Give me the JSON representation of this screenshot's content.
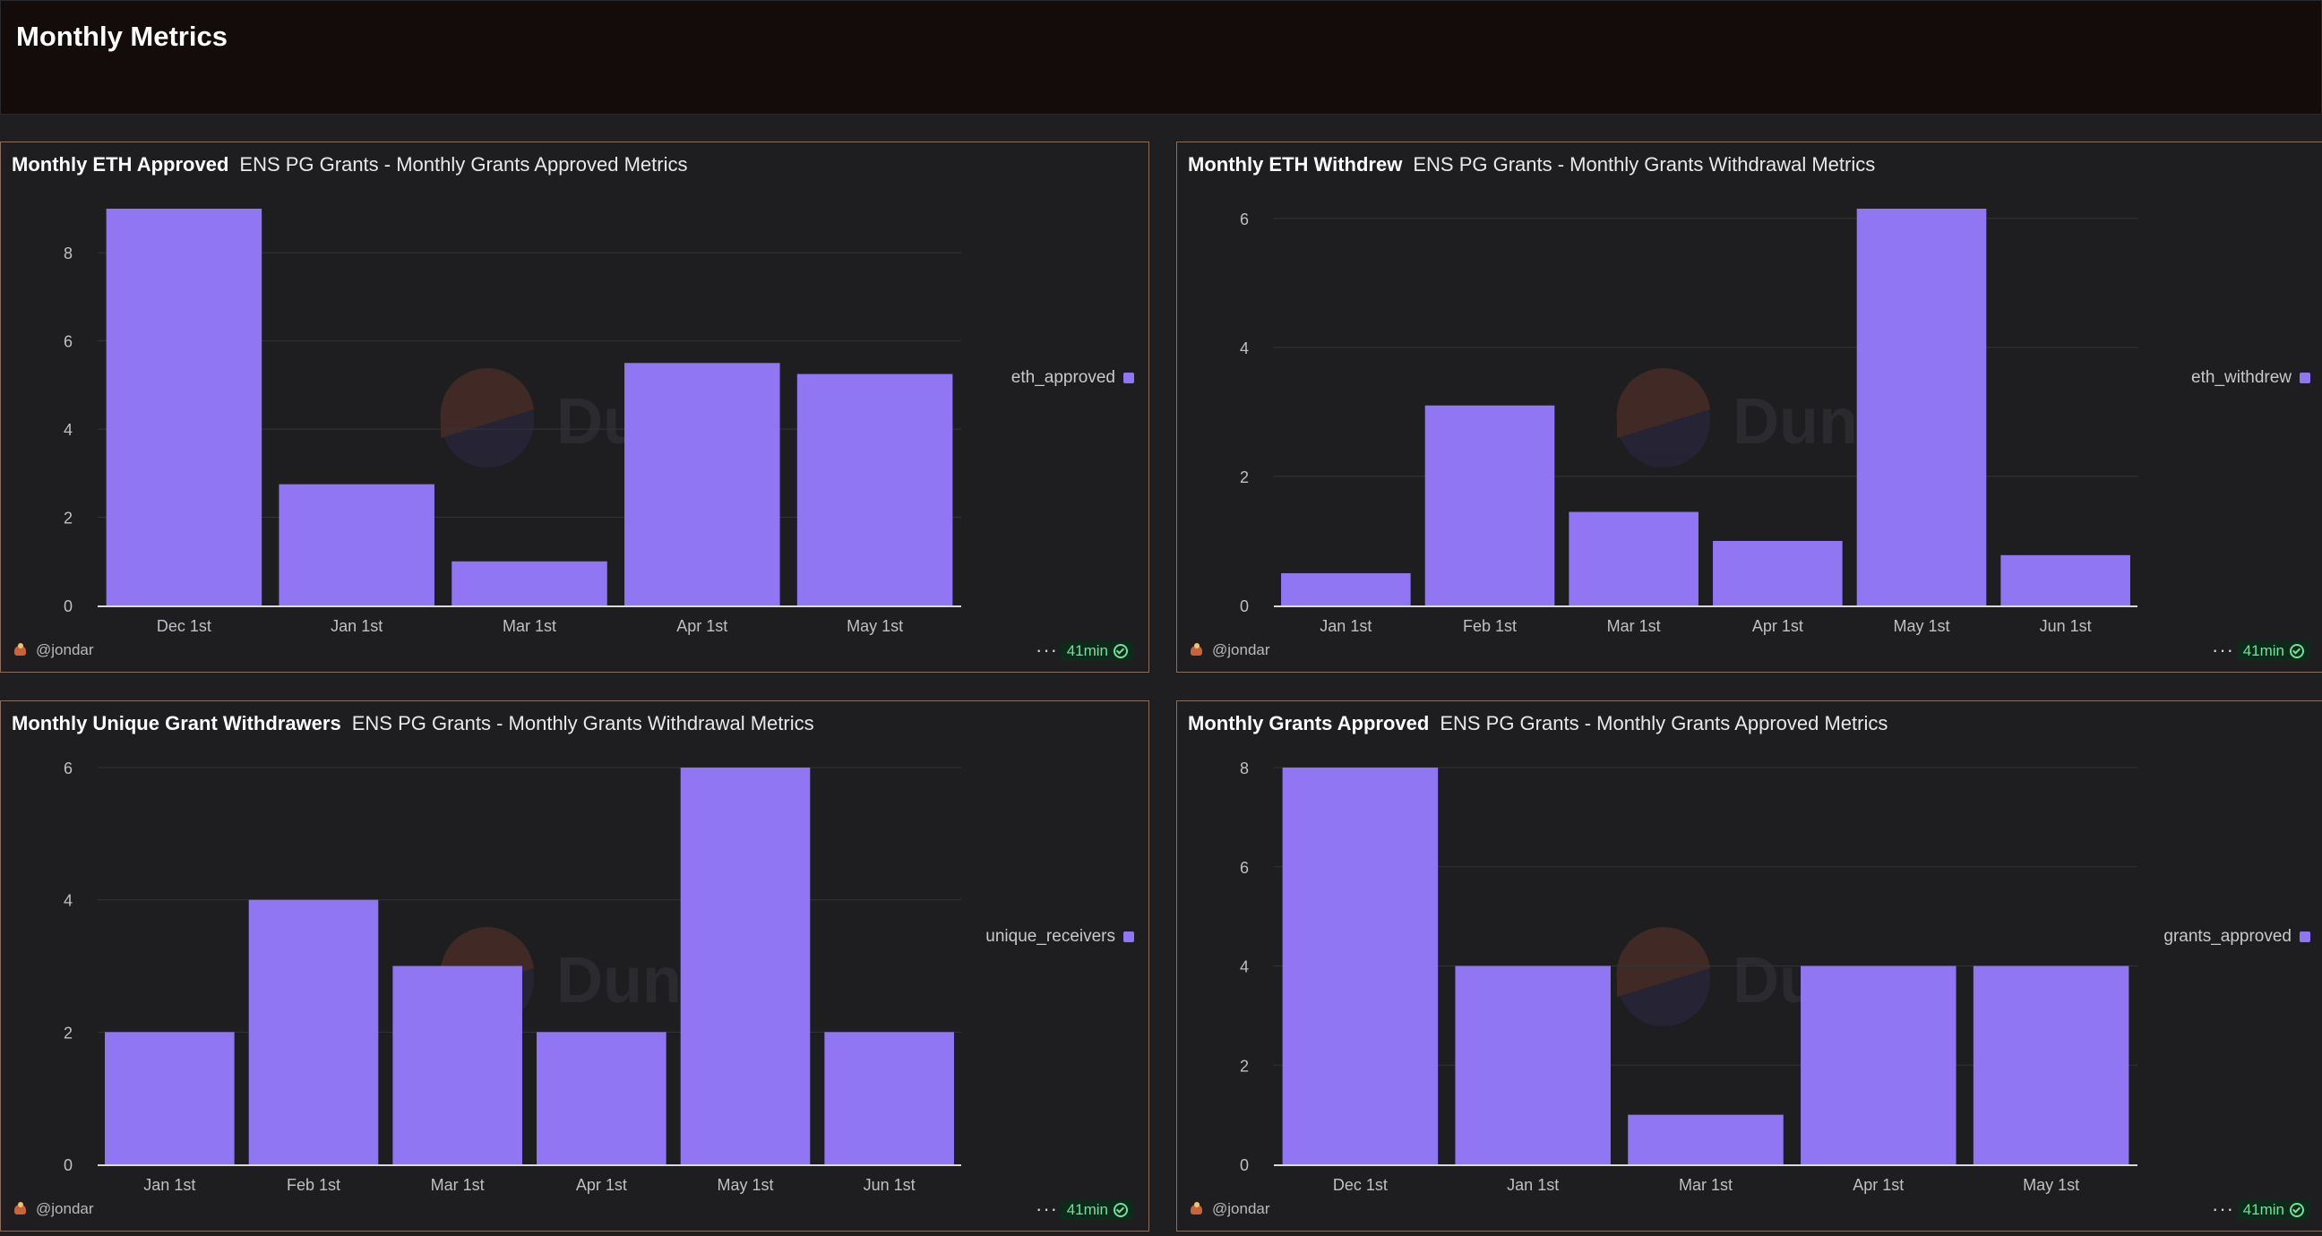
{
  "page": {
    "title": "Monthly Metrics"
  },
  "panels": [
    {
      "title": "Monthly ETH Approved",
      "query": "ENS PG Grants - Monthly Grants Approved Metrics",
      "legend": "eth_approved",
      "owner": "@jondar",
      "status": "41min",
      "watermark": "Dune"
    },
    {
      "title": "Monthly ETH Withdrew",
      "query": "ENS PG Grants - Monthly Grants Withdrawal Metrics",
      "legend": "eth_withdrew",
      "owner": "@jondar",
      "status": "41min",
      "watermark": "Dune"
    },
    {
      "title": "Monthly Unique Grant Withdrawers",
      "query": "ENS PG Grants - Monthly Grants Withdrawal Metrics",
      "legend": "unique_receivers",
      "owner": "@jondar",
      "status": "41min",
      "watermark": "Dune"
    },
    {
      "title": "Monthly Grants Approved",
      "query": "ENS PG Grants - Monthly Grants Approved Metrics",
      "legend": "grants_approved",
      "owner": "@jondar",
      "status": "41min",
      "watermark": "Dune"
    }
  ],
  "colors": {
    "bar": "#9176f3",
    "grid": "#333338",
    "axis": "#d9d9dc",
    "tick": "#c0c0c4"
  },
  "chart_data": [
    {
      "type": "bar",
      "title": "Monthly ETH Approved",
      "categories": [
        "Dec 1st",
        "Jan 1st",
        "Mar 1st",
        "Apr 1st",
        "May 1st"
      ],
      "series": [
        {
          "name": "eth_approved",
          "values": [
            9.0,
            2.75,
            1.0,
            5.5,
            5.25
          ]
        }
      ],
      "ylim": [
        0,
        9
      ],
      "yticks": [
        "0",
        "2",
        "4",
        "6",
        "8"
      ],
      "grid": true,
      "legend_position": "right"
    },
    {
      "type": "bar",
      "title": "Monthly ETH Withdrew",
      "categories": [
        "Jan 1st",
        "Feb 1st",
        "Mar 1st",
        "Apr 1st",
        "May 1st",
        "Jun 1st"
      ],
      "series": [
        {
          "name": "eth_withdrew",
          "values": [
            0.5,
            3.1,
            1.45,
            1.0,
            6.15,
            0.78
          ]
        }
      ],
      "ylim": [
        0,
        6.15
      ],
      "yticks": [
        "0",
        "2",
        "4",
        "6"
      ],
      "grid": true,
      "legend_position": "right"
    },
    {
      "type": "bar",
      "title": "Monthly Unique Grant Withdrawers",
      "categories": [
        "Jan 1st",
        "Feb 1st",
        "Mar 1st",
        "Apr 1st",
        "May 1st",
        "Jun 1st"
      ],
      "series": [
        {
          "name": "unique_receivers",
          "values": [
            2,
            4,
            3,
            2,
            6,
            2
          ]
        }
      ],
      "ylim": [
        0,
        6
      ],
      "yticks": [
        "0",
        "2",
        "4",
        "6"
      ],
      "grid": true,
      "legend_position": "right"
    },
    {
      "type": "bar",
      "title": "Monthly Grants Approved",
      "categories": [
        "Dec 1st",
        "Jan 1st",
        "Mar 1st",
        "Apr 1st",
        "May 1st"
      ],
      "series": [
        {
          "name": "grants_approved",
          "values": [
            8,
            4,
            1,
            4,
            4
          ]
        }
      ],
      "ylim": [
        0,
        8
      ],
      "yticks": [
        "0",
        "2",
        "4",
        "6",
        "8"
      ],
      "grid": true,
      "legend_position": "right"
    }
  ]
}
